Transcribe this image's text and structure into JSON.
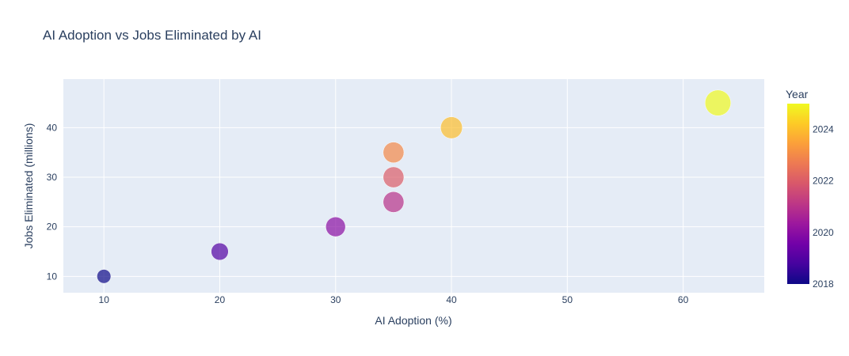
{
  "chart_data": {
    "type": "scatter",
    "title": "AI Adoption vs Jobs Eliminated by AI",
    "xlabel": "AI Adoption (%)",
    "ylabel": "Jobs Eliminated (millions)",
    "xlim": [
      6.5,
      67
    ],
    "ylim": [
      6.7,
      49.8
    ],
    "xticks": [
      10,
      20,
      30,
      40,
      50,
      60
    ],
    "yticks": [
      10,
      20,
      30,
      40
    ],
    "grid": true,
    "points": [
      {
        "x": 10,
        "y": 10,
        "year": 2018
      },
      {
        "x": 20,
        "y": 15,
        "year": 2019
      },
      {
        "x": 30,
        "y": 20,
        "year": 2020
      },
      {
        "x": 35,
        "y": 25,
        "year": 2021
      },
      {
        "x": 35,
        "y": 30,
        "year": 2022
      },
      {
        "x": 35,
        "y": 35,
        "year": 2023
      },
      {
        "x": 40,
        "y": 40,
        "year": 2024
      },
      {
        "x": 63,
        "y": 45,
        "year": 2025
      }
    ],
    "size_by": "x",
    "colorbar": {
      "title": "Year",
      "min": 2018,
      "max": 2025,
      "ticks": [
        2018,
        2020,
        2022,
        2024
      ],
      "colorscale": [
        "#0d0887",
        "#46039f",
        "#7201a8",
        "#9c179e",
        "#bd3786",
        "#d8576b",
        "#ed7953",
        "#fb9f3a",
        "#fdca26",
        "#f0f921"
      ]
    },
    "colors": {
      "plot_bg": "#e5ecf6",
      "grid": "#ffffff",
      "text": "#2a3f5f"
    }
  }
}
